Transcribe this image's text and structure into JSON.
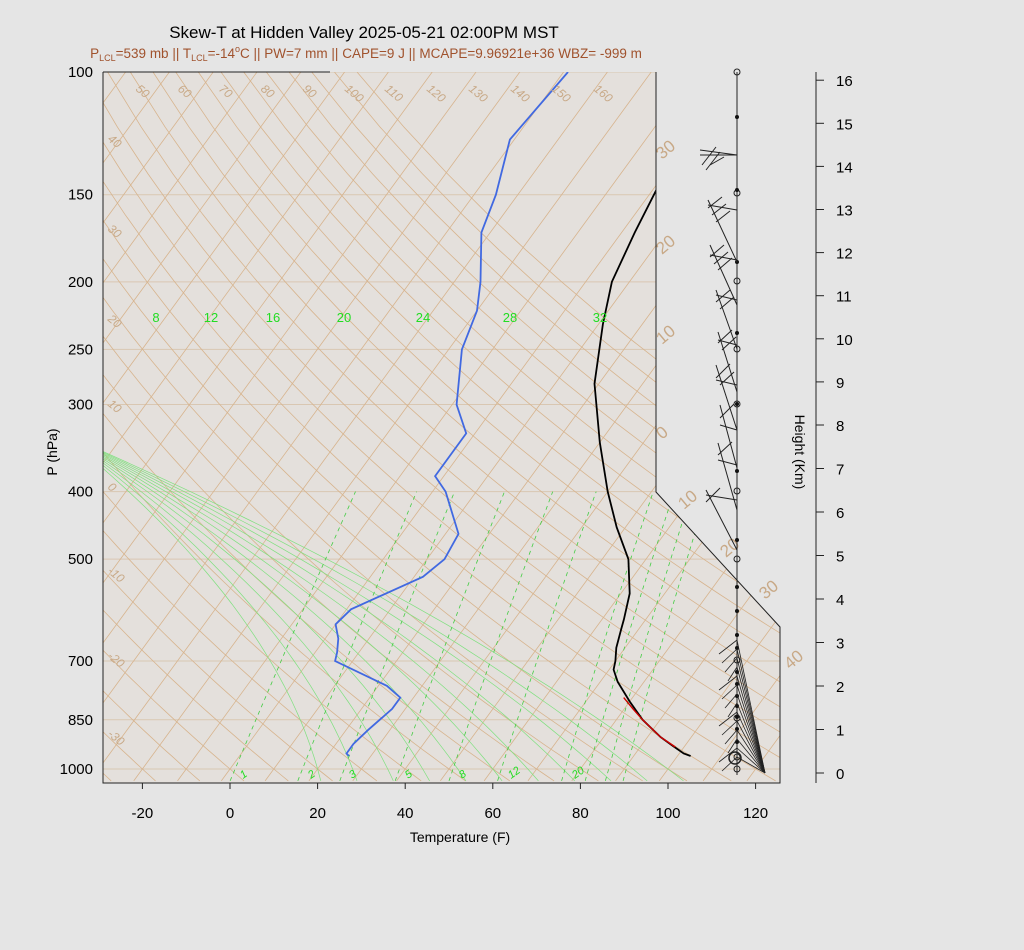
{
  "title": "Skew-T at Hidden Valley 2025-05-21 02:00PM MST",
  "subtitle": {
    "p_lcl_prefix": "P",
    "p_lcl_sub": "LCL",
    "p_lcl_rest": "=539 mb || T",
    "t_lcl_sub": "LCL",
    "t_lcl_rest": "=-14",
    "deg_sup": "o",
    "rest": "C || PW=7 mm || CAPE=9 J || MCAPE=9.96921e+36 WBZ= -999 m"
  },
  "colors": {
    "background": "#e5e5e5",
    "plot_background": "#e4e0dc",
    "temperature": "#000000",
    "dewpoint": "#4169e1",
    "parcel": "#cc0000",
    "isotherm": "#d2b48c",
    "mixing_ratio": "#33dd33",
    "annotation": "#a0522d"
  },
  "chart_data": {
    "type": "skew-t",
    "xlabel": "Temperature (F)",
    "ylabel": "P (hPa)",
    "right_label": "Height (Km)",
    "x_ticks": [
      -20,
      0,
      20,
      40,
      60,
      80,
      100,
      120
    ],
    "x_range": [
      -28,
      125
    ],
    "p_ticks": [
      100,
      150,
      200,
      250,
      300,
      400,
      500,
      700,
      850,
      1000
    ],
    "p_range": [
      1040,
      100
    ],
    "height_ticks": [
      0,
      1,
      2,
      3,
      4,
      5,
      6,
      7,
      8,
      9,
      10,
      11,
      12,
      13,
      14,
      15,
      16
    ],
    "temperature": {
      "p": [
        958,
        950,
        925,
        900,
        850,
        800,
        750,
        720,
        700,
        670,
        630,
        610,
        560,
        500,
        450,
        400,
        340,
        280,
        230,
        200,
        170,
        140,
        125,
        100
      ],
      "t_f": [
        103,
        101,
        97,
        93,
        86,
        80,
        74,
        71,
        70,
        68,
        66,
        65,
        62,
        56,
        48,
        40,
        30,
        19,
        11,
        6,
        3,
        0,
        -1,
        -4
      ]
    },
    "dewpoint": {
      "p": [
        958,
        950,
        920,
        880,
        820,
        790,
        760,
        700,
        680,
        650,
        620,
        590,
        530,
        500,
        460,
        400,
        380,
        330,
        300,
        250,
        220,
        200,
        170,
        150,
        125,
        100
      ],
      "td_f": [
        25,
        24,
        24,
        25,
        27,
        27,
        22,
        6,
        5,
        3,
        0,
        1,
        12,
        14,
        13,
        3,
        -2,
        -2,
        -9,
        -17,
        -20,
        -24,
        -32,
        -35,
        -41,
        -39
      ]
    },
    "parcel": {
      "p": [
        930,
        900,
        850,
        820,
        790
      ],
      "t_f": [
        98,
        93,
        86,
        82,
        78
      ]
    },
    "isotherm_labels": [
      {
        "text": "50",
        "t_f": 50
      },
      {
        "text": "60",
        "t_f": 60
      },
      {
        "text": "70",
        "t_f": 70
      },
      {
        "text": "80",
        "t_f": 80
      },
      {
        "text": "90",
        "t_f": 90
      },
      {
        "text": "100",
        "t_f": 100
      },
      {
        "text": "110",
        "t_f": 110
      },
      {
        "text": "120",
        "t_f": 120
      },
      {
        "text": "130",
        "t_f": 130
      },
      {
        "text": "140",
        "t_f": 140
      },
      {
        "text": "150",
        "t_f": 150
      },
      {
        "text": "160",
        "t_f": 160
      }
    ],
    "isotherm_left_labels": [
      "40",
      "30",
      "20",
      "10",
      "0",
      "-10",
      "-20",
      "-30"
    ],
    "isotherm_right_labels": [
      "30",
      "20",
      "10",
      "0",
      "10",
      "20",
      "30",
      "40"
    ],
    "mixing_ratio_top_labels": [
      "8",
      "12",
      "16",
      "20",
      "24",
      "28",
      "32"
    ],
    "mixing_ratio_bottom_labels": [
      "1",
      "2",
      "3",
      "5",
      "8",
      "12",
      "20"
    ],
    "mixing_ratio_values": [
      1,
      2,
      3,
      5,
      8,
      12,
      20,
      24,
      28,
      32
    ]
  }
}
